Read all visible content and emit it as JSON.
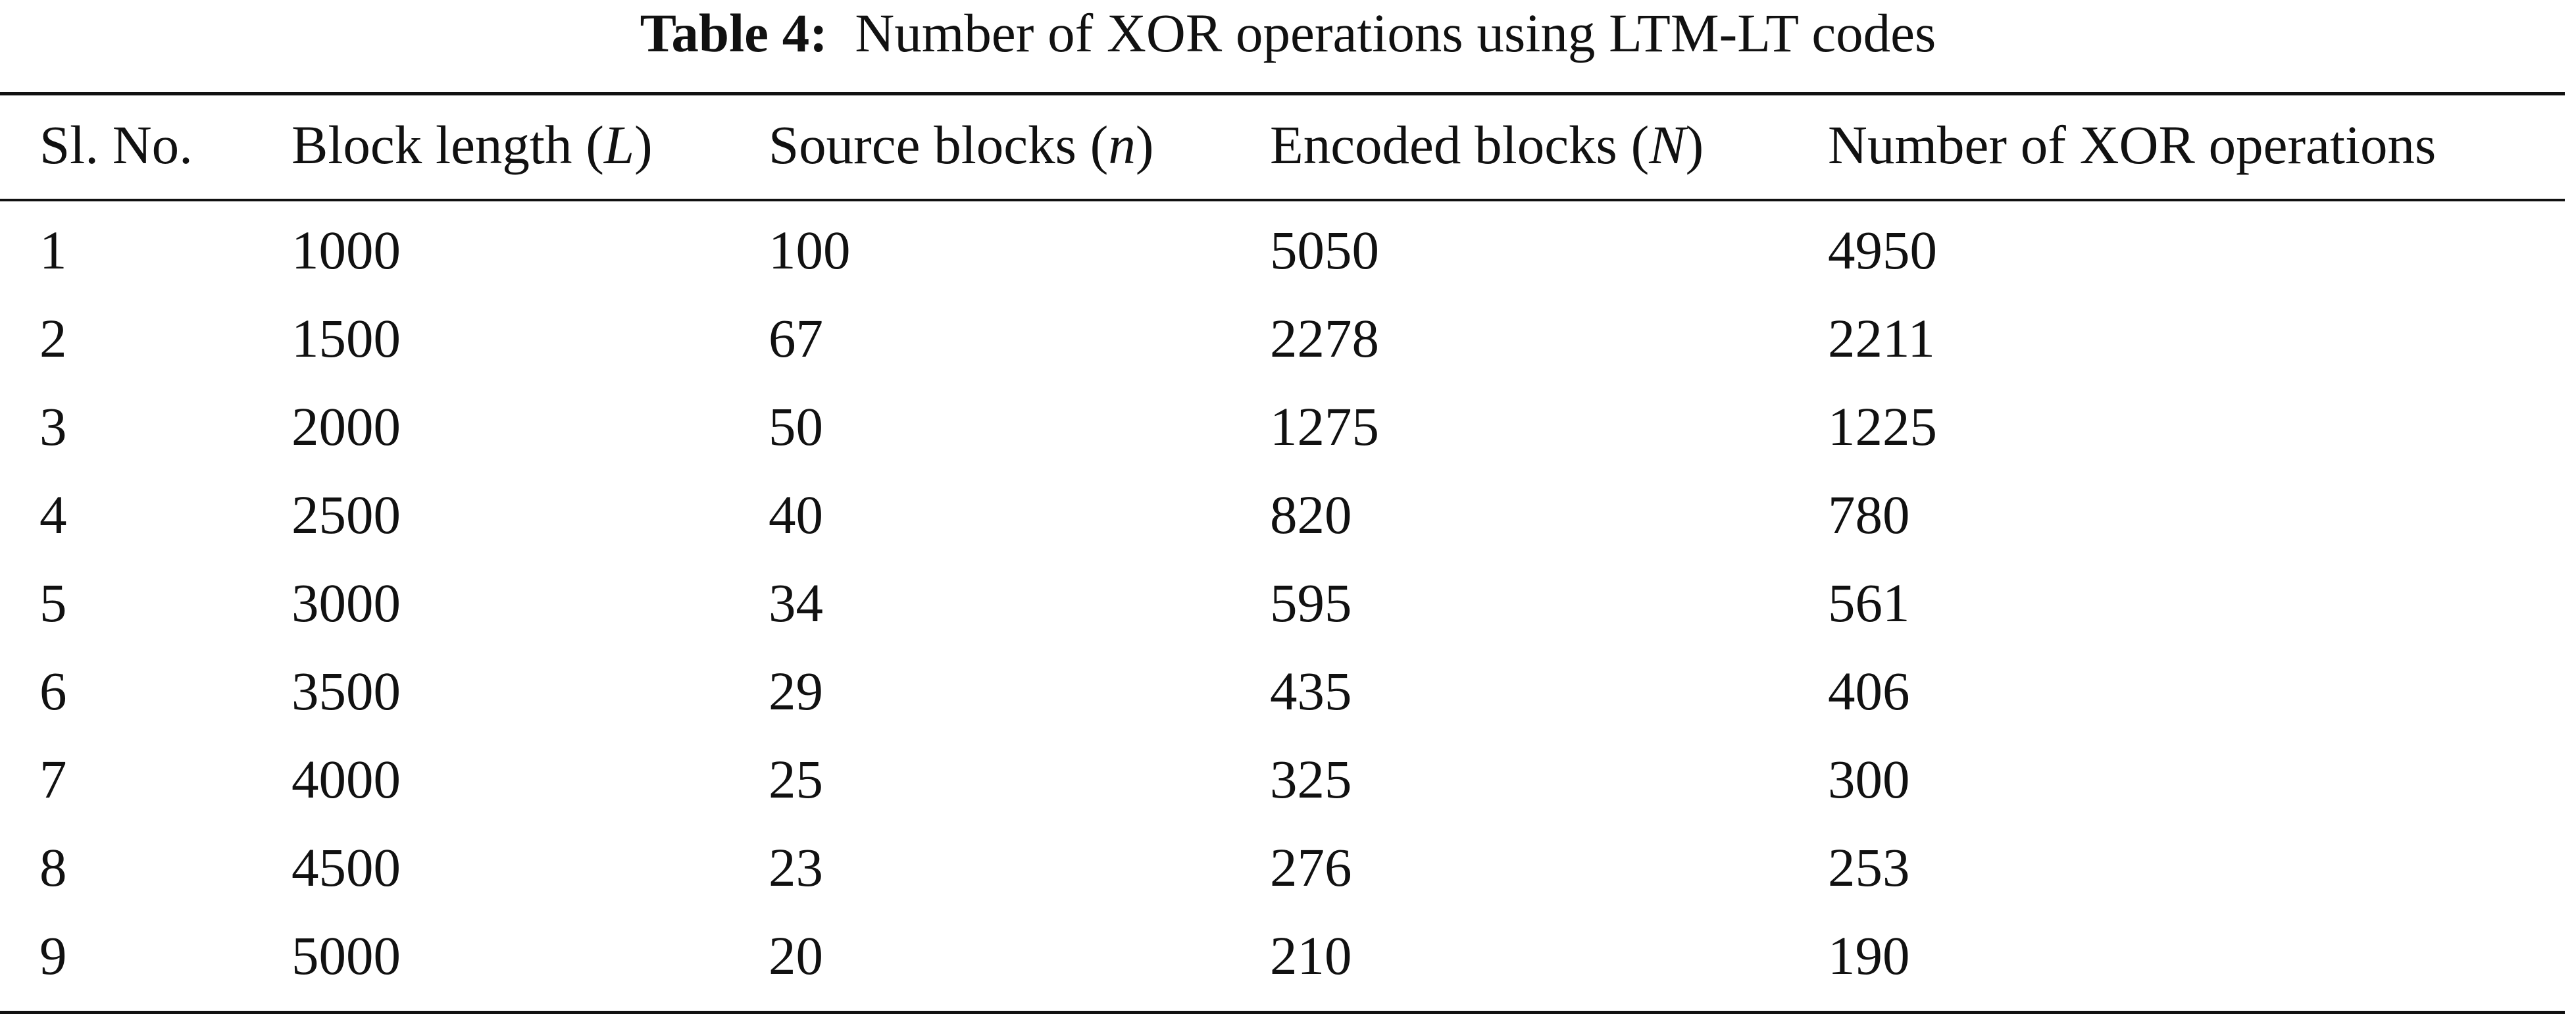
{
  "caption": {
    "label": "Table 4:",
    "text": "Number of XOR operations using LTM-LT codes"
  },
  "table": {
    "headers": [
      {
        "text": "Sl. No.",
        "pre": "",
        "var": "",
        "post": ""
      },
      {
        "text": "",
        "pre": "Block length (",
        "var": "L",
        "post": ")"
      },
      {
        "text": "",
        "pre": "Source blocks (",
        "var": "n",
        "post": ")"
      },
      {
        "text": "",
        "pre": "Encoded blocks (",
        "var": "N",
        "post": ")"
      },
      {
        "text": "Number of XOR operations",
        "pre": "",
        "var": "",
        "post": ""
      }
    ],
    "rows": [
      [
        "1",
        "1000",
        "100",
        "5050",
        "4950"
      ],
      [
        "2",
        "1500",
        "67",
        "2278",
        "2211"
      ],
      [
        "3",
        "2000",
        "50",
        "1275",
        "1225"
      ],
      [
        "4",
        "2500",
        "40",
        "820",
        "780"
      ],
      [
        "5",
        "3000",
        "34",
        "595",
        "561"
      ],
      [
        "6",
        "3500",
        "29",
        "435",
        "406"
      ],
      [
        "7",
        "4000",
        "25",
        "325",
        "300"
      ],
      [
        "8",
        "4500",
        "23",
        "276",
        "253"
      ],
      [
        "9",
        "5000",
        "20",
        "210",
        "190"
      ]
    ]
  }
}
